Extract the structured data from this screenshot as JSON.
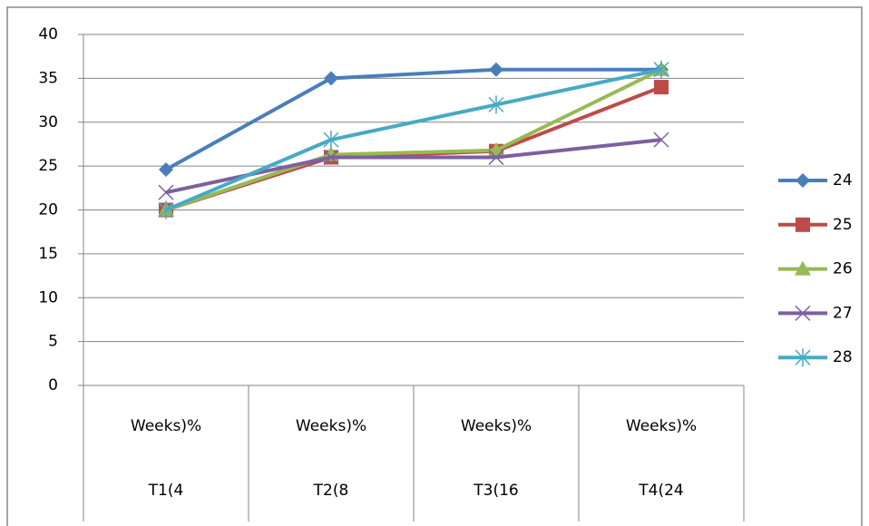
{
  "chart_data": {
    "type": "line",
    "categories": [
      [
        "Weeks)%",
        "T1(4"
      ],
      [
        "Weeks)%",
        "T2(8"
      ],
      [
        "Weeks)%",
        "T3(16"
      ],
      [
        "Weeks)%",
        "T4(24"
      ]
    ],
    "series": [
      {
        "name": "24",
        "color": "#4a7ebb",
        "marker": "diamond",
        "values": [
          24.6,
          35,
          36,
          36
        ]
      },
      {
        "name": "25",
        "color": "#be4b48",
        "marker": "square",
        "values": [
          20,
          26,
          26.7,
          34
        ]
      },
      {
        "name": "26",
        "color": "#98b954",
        "marker": "triangle",
        "values": [
          20,
          26.3,
          26.8,
          36
        ]
      },
      {
        "name": "27",
        "color": "#7d5fa0",
        "marker": "x",
        "values": [
          22,
          26,
          26,
          28
        ]
      },
      {
        "name": "28",
        "color": "#46aac5",
        "marker": "asterisk",
        "values": [
          20,
          28,
          32,
          36
        ]
      }
    ],
    "ylim": [
      0,
      40
    ],
    "yticks": [
      0,
      5,
      10,
      15,
      20,
      25,
      30,
      35,
      40
    ],
    "grid": true,
    "legend": "right"
  }
}
